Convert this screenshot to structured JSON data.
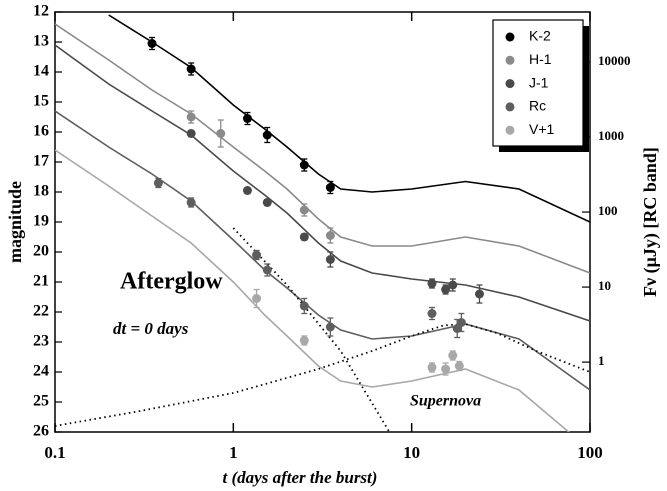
{
  "chart_data": {
    "type": "scatter",
    "xlabel": "t (days after the burst)",
    "ylabel": "magnitude",
    "y2label": "Fν (μJy) [RC band]",
    "xlog": true,
    "xlim": [
      0.1,
      100
    ],
    "xticks": [
      0.1,
      1,
      10,
      100
    ],
    "ylim": [
      12,
      26
    ],
    "yinvert": true,
    "yticks": [
      12,
      13,
      14,
      15,
      16,
      17,
      18,
      19,
      20,
      21,
      22,
      23,
      24,
      25,
      26
    ],
    "y2log": true,
    "y2lim": [
      0.117,
      46400
    ],
    "y2ticks": [
      1,
      10,
      100,
      1000,
      10000
    ],
    "legend": "upper right",
    "annotations": [
      "Afterglow",
      "dt = 0 days",
      "Supernova"
    ],
    "series": [
      {
        "name": "K-2",
        "color": "#000000",
        "x": [
          0.35,
          0.58,
          1.2,
          1.55,
          2.5,
          3.5
        ],
        "values": [
          13.05,
          13.9,
          15.55,
          16.1,
          17.1,
          17.85
        ],
        "errors": [
          0.2,
          0.2,
          0.2,
          0.25,
          0.2,
          0.2
        ]
      },
      {
        "name": "H-1",
        "color": "#8a8a8a",
        "x": [
          0.58,
          0.85,
          2.5,
          3.5
        ],
        "values": [
          15.5,
          16.05,
          18.6,
          19.45
        ],
        "errors": [
          0.2,
          0.45,
          0.2,
          0.25
        ]
      },
      {
        "name": "J-1",
        "color": "#4a4a4a",
        "x": [
          0.58,
          1.2,
          1.55,
          2.5,
          3.5,
          13,
          15.5,
          17,
          24
        ],
        "values": [
          16.05,
          17.95,
          18.35,
          19.5,
          20.25,
          21.05,
          21.25,
          21.1,
          21.4
        ],
        "errors": [
          0.1,
          0.1,
          0.1,
          0.1,
          0.25,
          0.15,
          0.15,
          0.2,
          0.3
        ]
      },
      {
        "name": "Rc",
        "color": "#5e5e5e",
        "x": [
          0.38,
          0.58,
          1.35,
          1.55,
          2.5,
          3.5,
          13,
          18,
          19
        ],
        "values": [
          17.7,
          18.35,
          20.1,
          20.6,
          21.8,
          22.5,
          22.05,
          22.55,
          22.35
        ],
        "errors": [
          0.15,
          0.15,
          0.15,
          0.2,
          0.25,
          0.3,
          0.2,
          0.3,
          0.3
        ]
      },
      {
        "name": "V+1",
        "color": "#a8a8a8",
        "x": [
          1.35,
          2.5,
          13,
          15.5,
          17,
          18.5
        ],
        "values": [
          21.55,
          22.95,
          23.85,
          23.9,
          23.45,
          23.8
        ],
        "errors": [
          0.3,
          0.15,
          0.15,
          0.2,
          0.15,
          0.15
        ]
      }
    ],
    "model_curves": [
      {
        "color": "#000000",
        "x": [
          0.2,
          0.35,
          0.58,
          1,
          1.5,
          2,
          3,
          4,
          6,
          10,
          20,
          40,
          100
        ],
        "values": [
          12.1,
          13.0,
          13.85,
          15.1,
          15.9,
          16.5,
          17.4,
          17.9,
          18.0,
          17.9,
          17.65,
          17.9,
          19.0
        ]
      },
      {
        "color": "#8a8a8a",
        "x": [
          0.1,
          0.2,
          0.35,
          0.58,
          1,
          1.5,
          2,
          3,
          4,
          6,
          10,
          20,
          40,
          100
        ],
        "values": [
          12.4,
          13.6,
          14.6,
          15.4,
          16.5,
          17.3,
          17.9,
          18.9,
          19.5,
          19.8,
          19.8,
          19.5,
          19.8,
          20.7
        ]
      },
      {
        "color": "#4a4a4a",
        "x": [
          0.1,
          0.2,
          0.35,
          0.58,
          1,
          1.5,
          2,
          3,
          4,
          6,
          10,
          20,
          40,
          100
        ],
        "values": [
          13.1,
          14.4,
          15.3,
          16.1,
          17.3,
          18.1,
          18.7,
          19.7,
          20.3,
          20.7,
          20.9,
          21.1,
          21.5,
          22.3
        ]
      },
      {
        "color": "#5e5e5e",
        "x": [
          0.1,
          0.2,
          0.35,
          0.58,
          1,
          1.5,
          2,
          3,
          4,
          6,
          10,
          20,
          40,
          100
        ],
        "values": [
          15.3,
          16.5,
          17.4,
          18.3,
          19.6,
          20.6,
          21.2,
          22.1,
          22.6,
          22.9,
          22.8,
          22.4,
          22.9,
          24.6
        ]
      },
      {
        "color": "#a8a8a8",
        "x": [
          0.1,
          0.2,
          0.35,
          0.58,
          1,
          1.5,
          2,
          3,
          4,
          6,
          10,
          20,
          40,
          100
        ],
        "values": [
          16.6,
          17.8,
          18.8,
          19.7,
          21.0,
          22.1,
          22.8,
          23.8,
          24.3,
          24.5,
          24.3,
          23.9,
          24.6,
          26.6
        ]
      }
    ],
    "dotted_curves": [
      {
        "color": "#000000",
        "x": [
          1,
          2,
          4,
          7.5
        ],
        "values": [
          19.2,
          21.1,
          23.3,
          26.0
        ]
      },
      {
        "color": "#000000",
        "x": [
          0.1,
          0.3,
          1,
          3,
          6,
          10,
          15,
          20,
          30,
          50,
          100
        ],
        "values": [
          25.8,
          25.3,
          24.7,
          23.9,
          23.3,
          22.8,
          22.45,
          22.4,
          22.7,
          23.3,
          24.0
        ]
      }
    ]
  }
}
